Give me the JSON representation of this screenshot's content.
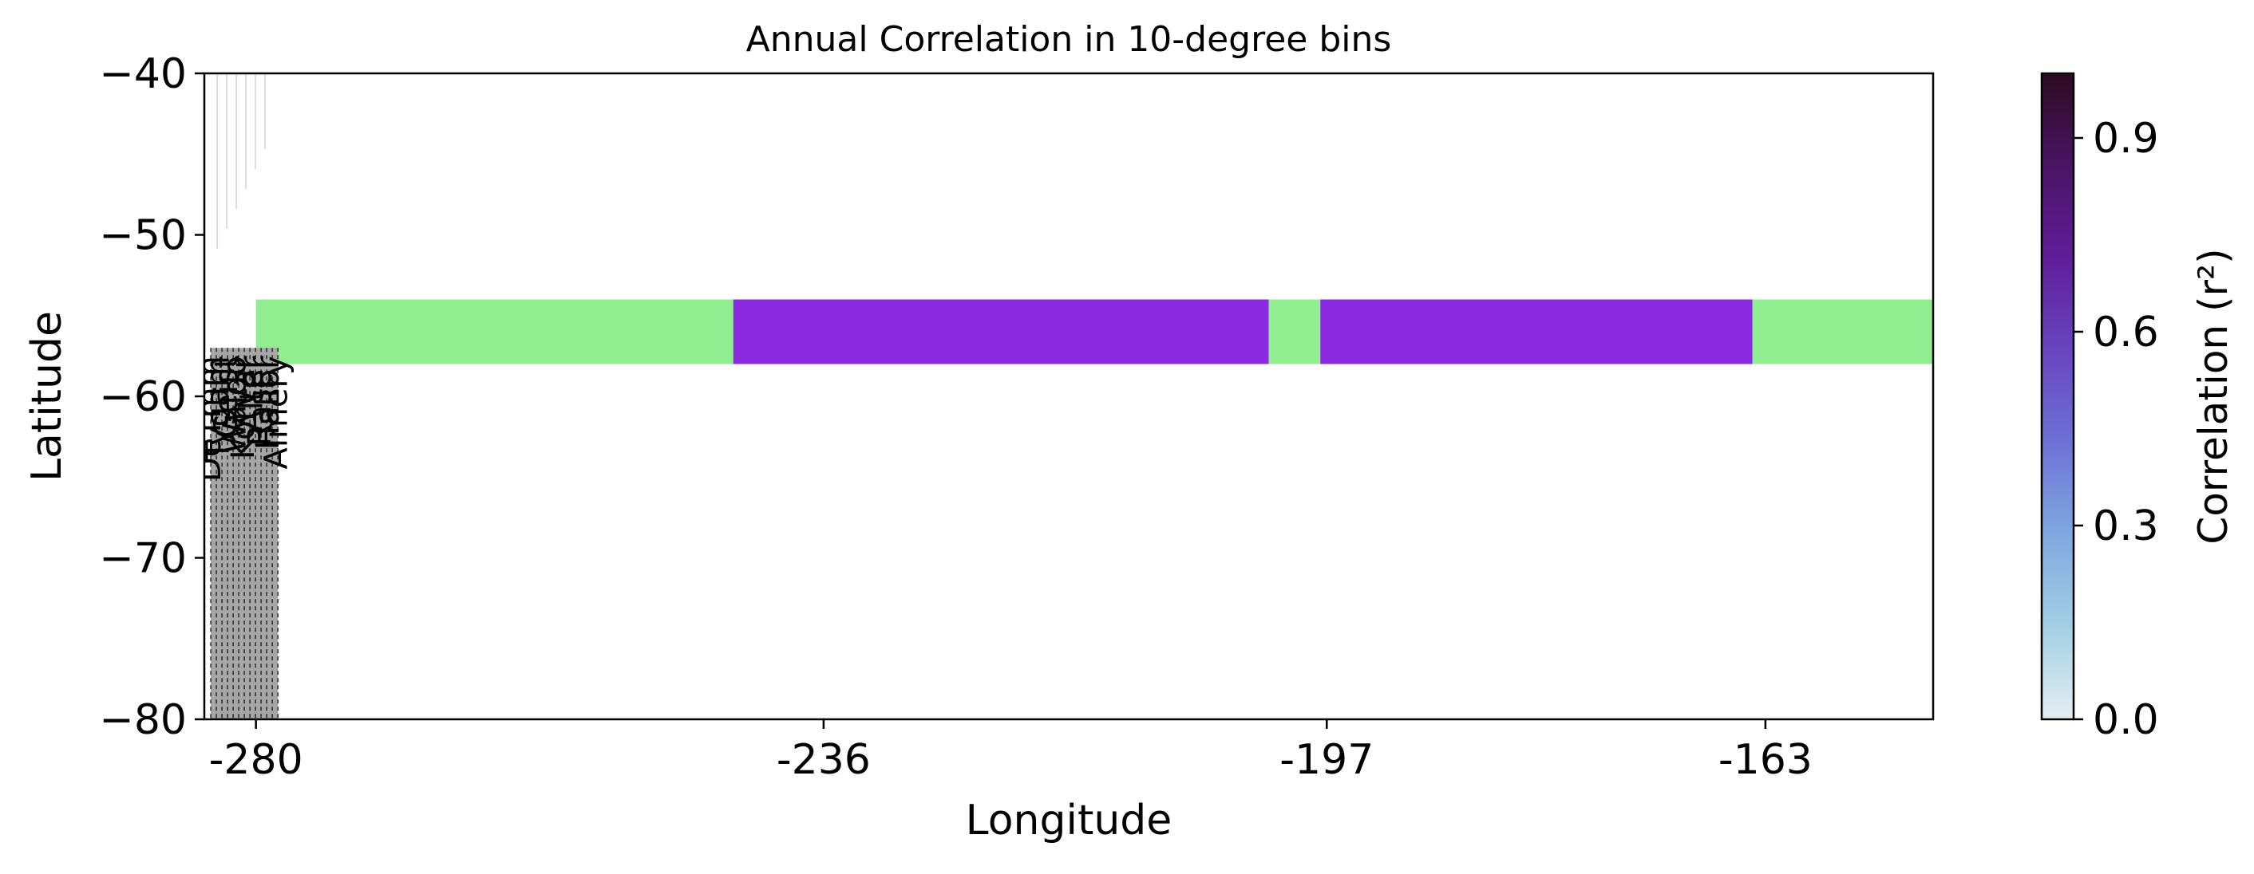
{
  "chart_data": {
    "type": "heatmap",
    "title": "Annual Correlation in 10-degree bins",
    "xlabel": "Longitude",
    "ylabel": "Latitude",
    "xlim": [
      -284,
      -150
    ],
    "ylim": [
      -80,
      -40
    ],
    "x_ticks": [
      {
        "value": -280,
        "label": "-280"
      },
      {
        "value": -236,
        "label": "-236"
      },
      {
        "value": -197,
        "label": "-197"
      },
      {
        "value": -163,
        "label": "-163"
      }
    ],
    "y_ticks": [
      {
        "value": -40,
        "label": "−40"
      },
      {
        "value": -50,
        "label": "−50"
      },
      {
        "value": -60,
        "label": "−60"
      },
      {
        "value": -70,
        "label": "−70"
      },
      {
        "value": -80,
        "label": "−80"
      }
    ],
    "cells": [
      {
        "x0": -280.0,
        "x1": -243.0,
        "y0": -58,
        "y1": -54,
        "color": "#90ee90"
      },
      {
        "x0": -243.0,
        "x1": -201.5,
        "y0": -58,
        "y1": -54,
        "color": "#8a2be2"
      },
      {
        "x0": -201.5,
        "x1": -197.5,
        "y0": -58,
        "y1": -54,
        "color": "#90ee90"
      },
      {
        "x0": -197.5,
        "x1": -164.0,
        "y0": -58,
        "y1": -54,
        "color": "#8a2be2"
      },
      {
        "x0": -164.0,
        "x1": -150.0,
        "y0": -58,
        "y1": -54,
        "color": "#90ee90"
      }
    ],
    "station_strip": {
      "x0": -283.5,
      "x1": -278.3,
      "y0": -80,
      "y1": -57,
      "color": "#a6a6a6"
    },
    "station_labels": [
      "DeTmm",
      "Tygam",
      "Geist",
      "Waldo",
      "Korvar",
      "Alter",
      "Raser",
      "Hallor",
      "Almery"
    ],
    "colorbar": {
      "label": "Correlation (r²)",
      "min": 0.0,
      "max": 1.0,
      "ticks": [
        {
          "value": 0.0,
          "label": "0.0"
        },
        {
          "value": 0.3,
          "label": "0.3"
        },
        {
          "value": 0.6,
          "label": "0.6"
        },
        {
          "value": 0.9,
          "label": "0.9"
        }
      ],
      "colors": [
        "#e4eef0",
        "#a3cfe4",
        "#7fa8e0",
        "#6d72d6",
        "#6945c0",
        "#5f1e99",
        "#4a1464",
        "#2d0b22"
      ]
    },
    "grid": false
  }
}
